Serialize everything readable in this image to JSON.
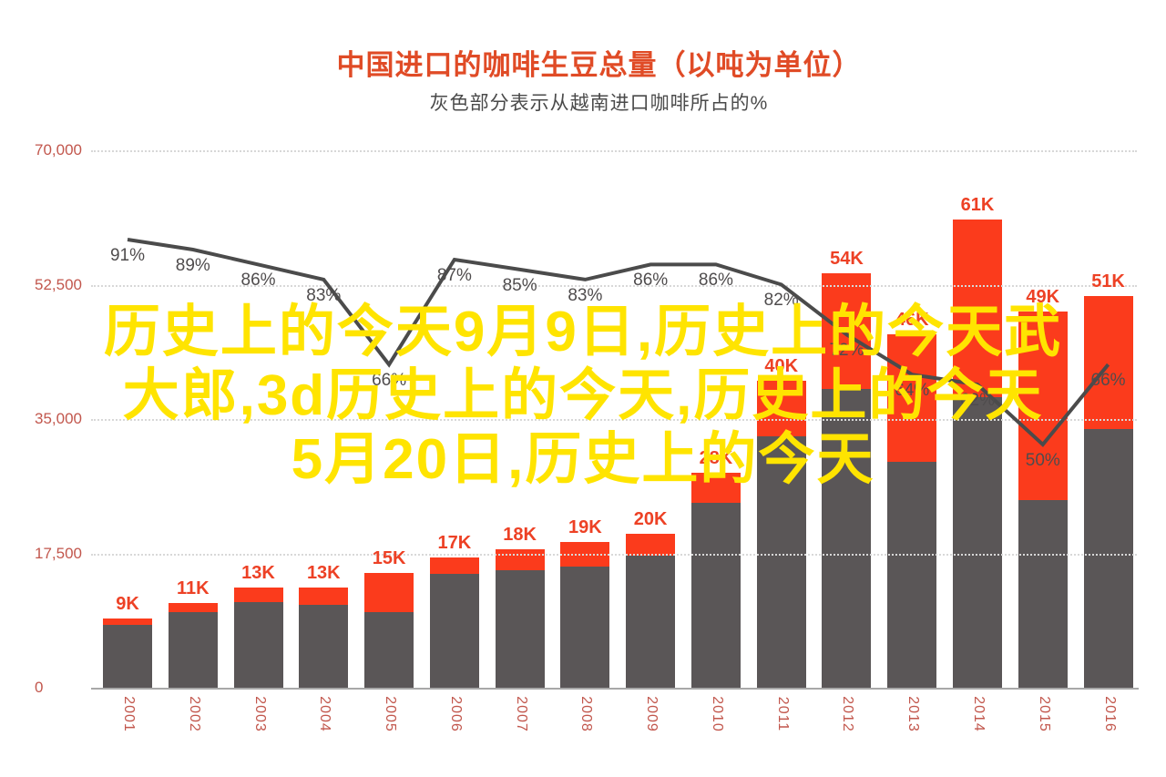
{
  "title": "中国进口的咖啡生豆总量（以吨为单位）",
  "subtitle": "灰色部分表示从越南进口咖啡所占的%",
  "colors": {
    "title": "#E04B26",
    "subtitle": "#4A4A4A",
    "bar_total_red": "#FB3B1C",
    "bar_vietnam_gray": "#5A5657",
    "trend_line": "#4B4B4B",
    "bar_value_label": "#ED4125",
    "axis_label_red": "#C2574D",
    "percent_label": "#4F4C4D",
    "gridline": "#D8D8D8",
    "axis_line": "#A8A8A8",
    "overlay_text": "#FFE400"
  },
  "overlay": {
    "lines": [
      "历史上的今天9月9日,历史上的今天武",
      "大郎,3d历史上的今天,历史上的今天",
      "5月20日,历史上的今天"
    ]
  },
  "chart_data": {
    "type": "bar",
    "subtype": "stacked-bar-with-percent-line",
    "title": "中国进口的咖啡生豆总量（以吨为单位）",
    "subtitle": "灰色部分表示从越南进口咖啡所占的%",
    "categories": [
      "2001",
      "2002",
      "2003",
      "2004",
      "2005",
      "2006",
      "2007",
      "2008",
      "2009",
      "2010",
      "2011",
      "2012",
      "2013",
      "2014",
      "2015",
      "2016"
    ],
    "series": [
      {
        "name": "咖啡生豆进口总量（吨）",
        "role": "bar-total",
        "values": [
          9000,
          11000,
          13000,
          13000,
          15000,
          17000,
          18000,
          19000,
          20000,
          28000,
          40000,
          54000,
          46000,
          61000,
          49000,
          51000
        ],
        "labels": [
          "9K",
          "11K",
          "13K",
          "13K",
          "15K",
          "17K",
          "18K",
          "19K",
          "20K",
          "28K",
          "40K",
          "54K",
          "46K",
          "61K",
          "49K",
          "51K"
        ],
        "labels_occluded_by_overlay": [
          "46K"
        ]
      },
      {
        "name": "从越南进口咖啡所占的%",
        "role": "vietnam-share-percent (gray bar portion + line)",
        "values_percent": [
          91,
          89,
          86,
          83,
          66,
          87,
          85,
          83,
          86,
          86,
          82,
          72,
          64,
          62,
          50,
          66
        ],
        "labels": [
          "91%",
          "89%",
          "86%",
          "83%",
          "66%",
          "87%",
          "85%",
          "83%",
          "86%",
          "86%",
          "82%",
          "72%",
          "64%",
          "62%",
          "50%",
          "66%"
        ],
        "labels_occluded_by_overlay": [
          "72%",
          "64%",
          "62%"
        ]
      }
    ],
    "ylim": [
      0,
      70000
    ],
    "yticks": [
      {
        "value": 0,
        "label": "0"
      },
      {
        "value": 17500,
        "label": "17,500"
      },
      {
        "value": 35000,
        "label": "35,000"
      },
      {
        "value": 52500,
        "label": "52,500"
      },
      {
        "value": 70000,
        "label": "70,000"
      }
    ],
    "grid": "horizontal dotted, drawn above bars",
    "legend": "none",
    "x_tick_rotation_deg": 90
  }
}
